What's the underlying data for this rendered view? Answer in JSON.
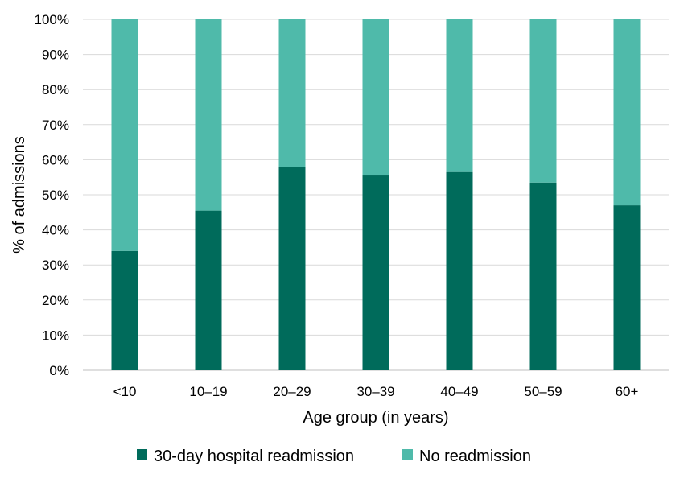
{
  "chart_data": {
    "type": "bar",
    "stacked": true,
    "percent_stacked": true,
    "title": "",
    "xlabel": "Age group (in years)",
    "ylabel": "% of admissions",
    "categories": [
      "<10",
      "10–19",
      "20–29",
      "30–39",
      "40–49",
      "50–59",
      "60+"
    ],
    "series": [
      {
        "name": "30-day hospital readmission",
        "color": "#006B5B",
        "values": [
          34,
          45.5,
          58,
          55.5,
          56.5,
          53.5,
          47
        ]
      },
      {
        "name": "No readmission",
        "color": "#4FBAAA",
        "values": [
          66,
          54.5,
          42,
          44.5,
          43.5,
          46.5,
          53
        ]
      }
    ],
    "ylim": [
      0,
      100
    ],
    "yticks": [
      "0%",
      "10%",
      "20%",
      "30%",
      "40%",
      "50%",
      "60%",
      "70%",
      "80%",
      "90%",
      "100%"
    ],
    "grid": true,
    "legend_position": "bottom"
  }
}
